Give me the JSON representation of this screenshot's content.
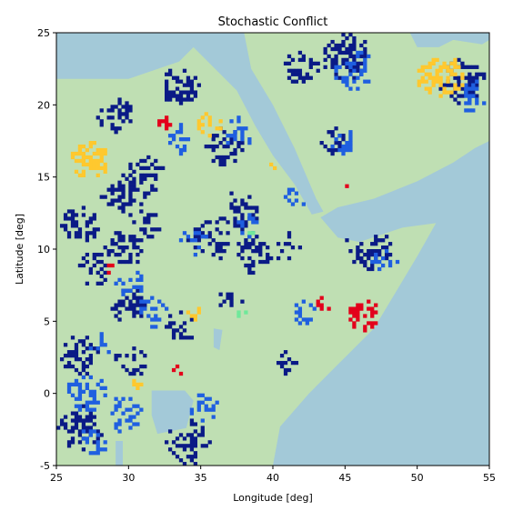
{
  "chart_data": {
    "type": "heatmap",
    "title": "Stochastic Conflict",
    "xlabel": "Longitude [deg]",
    "ylabel": "Latitude [deg]",
    "xlim": [
      25,
      55
    ],
    "ylim": [
      -5,
      25
    ],
    "xticks": [
      25,
      30,
      35,
      40,
      45,
      50,
      55
    ],
    "yticks": [
      -5,
      0,
      5,
      10,
      15,
      20,
      25
    ],
    "grid": false,
    "legend": "none",
    "colors": {
      "sea": "#a3c9d8",
      "land": "#bfdfb3",
      "conflict_dark": "#0a1a86",
      "conflict_blue": "#1f5fe0",
      "conflict_yellow": "#ffc82e",
      "conflict_red": "#e3001b",
      "conflict_green": "#6fe89a"
    },
    "sea_regions": [
      {
        "name": "Mediterranean / Sinai",
        "points": [
          [
            25,
            25
          ],
          [
            35.5,
            25
          ],
          [
            33.5,
            23.0
          ],
          [
            30,
            21.8
          ],
          [
            25,
            21.8
          ]
        ]
      },
      {
        "name": "Red Sea",
        "points": [
          [
            33.5,
            25
          ],
          [
            38,
            25
          ],
          [
            38.5,
            22.5
          ],
          [
            40,
            20
          ],
          [
            41.5,
            17
          ],
          [
            43,
            13.5
          ],
          [
            43.5,
            12.6
          ],
          [
            42.7,
            12.4
          ],
          [
            41.5,
            14.5
          ],
          [
            40,
            16.5
          ],
          [
            38.8,
            18.5
          ],
          [
            37.5,
            21
          ],
          [
            36,
            22.5
          ],
          [
            34.5,
            24
          ],
          [
            33.5,
            25
          ]
        ]
      },
      {
        "name": "Gulf of Aden / Arabian Sea",
        "points": [
          [
            43.3,
            12.2
          ],
          [
            44.5,
            12.9
          ],
          [
            47,
            13.5
          ],
          [
            50,
            14.7
          ],
          [
            52.5,
            16
          ],
          [
            54,
            17
          ],
          [
            55,
            17.5
          ],
          [
            55,
            -5
          ],
          [
            40,
            -5
          ],
          [
            40.5,
            -2.3
          ],
          [
            42.5,
            0
          ],
          [
            44.5,
            2
          ],
          [
            47,
            4.5
          ],
          [
            48.5,
            7
          ],
          [
            50,
            9.5
          ],
          [
            51.3,
            11.8
          ],
          [
            49,
            11.5
          ],
          [
            46,
            10.5
          ],
          [
            44.5,
            10.8
          ],
          [
            43.3,
            12.2
          ]
        ]
      },
      {
        "name": "Persian Gulf",
        "points": [
          [
            48,
            25
          ],
          [
            49.5,
            25
          ],
          [
            50,
            24
          ],
          [
            51.5,
            24
          ],
          [
            52.5,
            24.5
          ],
          [
            54.5,
            24.2
          ],
          [
            55,
            24.5
          ],
          [
            55,
            25
          ]
        ]
      },
      {
        "name": "Lake Victoria",
        "points": [
          [
            31.6,
            0.2
          ],
          [
            33.9,
            0.2
          ],
          [
            34.5,
            -0.5
          ],
          [
            34,
            -2.4
          ],
          [
            32,
            -2.8
          ],
          [
            31.6,
            -1.5
          ]
        ]
      },
      {
        "name": "Lake Turkana",
        "points": [
          [
            35.9,
            4.5
          ],
          [
            36.5,
            4.4
          ],
          [
            36.3,
            3
          ],
          [
            35.9,
            3.2
          ]
        ]
      },
      {
        "name": "Lake Tanganyika",
        "points": [
          [
            29.1,
            -3.3
          ],
          [
            29.6,
            -3.3
          ],
          [
            29.6,
            -5
          ],
          [
            29.1,
            -5
          ]
        ]
      }
    ],
    "conflict_clusters": [
      {
        "category": "dark",
        "center": [
          33.5,
          21.2
        ],
        "radius": 1.4,
        "density": 0.6
      },
      {
        "category": "dark",
        "center": [
          26.5,
          11.5
        ],
        "radius": 1.3,
        "density": 0.5
      },
      {
        "category": "dark",
        "center": [
          29,
          19
        ],
        "radius": 1.3,
        "density": 0.5
      },
      {
        "category": "dark",
        "center": [
          29.5,
          13.5
        ],
        "radius": 1.6,
        "density": 0.45
      },
      {
        "category": "dark",
        "center": [
          31,
          15
        ],
        "radius": 1.4,
        "density": 0.45
      },
      {
        "category": "dark",
        "center": [
          29.5,
          9.8
        ],
        "radius": 1.3,
        "density": 0.5
      },
      {
        "category": "dark",
        "center": [
          27.5,
          8.5
        ],
        "radius": 1.2,
        "density": 0.4
      },
      {
        "category": "dark",
        "center": [
          31,
          11.5
        ],
        "radius": 1.2,
        "density": 0.4
      },
      {
        "category": "dark",
        "center": [
          36.5,
          17
        ],
        "radius": 1.4,
        "density": 0.5
      },
      {
        "category": "dark",
        "center": [
          37.5,
          12.5
        ],
        "radius": 1.4,
        "density": 0.45
      },
      {
        "category": "dark",
        "center": [
          35.5,
          10.5
        ],
        "radius": 1.5,
        "density": 0.4
      },
      {
        "category": "dark",
        "center": [
          38.5,
          9.5
        ],
        "radius": 1.3,
        "density": 0.45
      },
      {
        "category": "dark",
        "center": [
          41,
          10
        ],
        "radius": 1.2,
        "density": 0.35
      },
      {
        "category": "dark",
        "center": [
          46.5,
          10
        ],
        "radius": 1.6,
        "density": 0.55
      },
      {
        "category": "dark",
        "center": [
          45,
          23.2
        ],
        "radius": 1.7,
        "density": 0.55
      },
      {
        "category": "dark",
        "center": [
          53,
          21.5
        ],
        "radius": 1.6,
        "density": 0.6
      },
      {
        "category": "dark",
        "center": [
          44,
          17.5
        ],
        "radius": 1.0,
        "density": 0.35
      },
      {
        "category": "dark",
        "center": [
          42,
          22.5
        ],
        "radius": 1.3,
        "density": 0.4
      },
      {
        "category": "dark",
        "center": [
          26.5,
          2.5
        ],
        "radius": 1.4,
        "density": 0.5
      },
      {
        "category": "dark",
        "center": [
          26.5,
          -2.5
        ],
        "radius": 1.6,
        "density": 0.5
      },
      {
        "category": "dark",
        "center": [
          34,
          -3.5
        ],
        "radius": 1.6,
        "density": 0.5
      },
      {
        "category": "dark",
        "center": [
          30,
          6
        ],
        "radius": 1.3,
        "density": 0.4
      },
      {
        "category": "dark",
        "center": [
          30,
          2
        ],
        "radius": 1.2,
        "density": 0.35
      },
      {
        "category": "dark",
        "center": [
          33.5,
          4.5
        ],
        "radius": 1.2,
        "density": 0.35
      },
      {
        "category": "dark",
        "center": [
          41,
          2
        ],
        "radius": 0.9,
        "density": 0.4
      },
      {
        "category": "dark",
        "center": [
          37,
          6.3
        ],
        "radius": 0.9,
        "density": 0.35
      },
      {
        "category": "blue",
        "center": [
          45.5,
          22.3
        ],
        "radius": 1.4,
        "density": 0.45
      },
      {
        "category": "blue",
        "center": [
          53.5,
          20.5
        ],
        "radius": 1.2,
        "density": 0.45
      },
      {
        "category": "blue",
        "center": [
          44.8,
          17.3
        ],
        "radius": 0.9,
        "density": 0.5
      },
      {
        "category": "blue",
        "center": [
          37.5,
          18
        ],
        "radius": 1.1,
        "density": 0.45
      },
      {
        "category": "blue",
        "center": [
          33.5,
          17.5
        ],
        "radius": 1.0,
        "density": 0.35
      },
      {
        "category": "blue",
        "center": [
          41.5,
          13.5
        ],
        "radius": 0.9,
        "density": 0.4
      },
      {
        "category": "blue",
        "center": [
          34.5,
          10.5
        ],
        "radius": 1.0,
        "density": 0.4
      },
      {
        "category": "blue",
        "center": [
          38,
          11.5
        ],
        "radius": 0.9,
        "density": 0.35
      },
      {
        "category": "blue",
        "center": [
          30,
          7.5
        ],
        "radius": 1.0,
        "density": 0.4
      },
      {
        "category": "blue",
        "center": [
          31.5,
          5.5
        ],
        "radius": 1.1,
        "density": 0.4
      },
      {
        "category": "blue",
        "center": [
          28,
          3.5
        ],
        "radius": 1.0,
        "density": 0.4
      },
      {
        "category": "blue",
        "center": [
          27,
          0
        ],
        "radius": 1.4,
        "density": 0.45
      },
      {
        "category": "blue",
        "center": [
          29.5,
          -1.5
        ],
        "radius": 1.3,
        "density": 0.45
      },
      {
        "category": "blue",
        "center": [
          27.5,
          -3.5
        ],
        "radius": 1.1,
        "density": 0.4
      },
      {
        "category": "blue",
        "center": [
          35,
          -1
        ],
        "radius": 1.1,
        "density": 0.35
      },
      {
        "category": "blue",
        "center": [
          42,
          5.5
        ],
        "radius": 0.9,
        "density": 0.45
      },
      {
        "category": "blue",
        "center": [
          47.5,
          9
        ],
        "radius": 1.0,
        "density": 0.35
      },
      {
        "category": "yellow",
        "center": [
          27.2,
          16
        ],
        "radius": 1.3,
        "density": 0.6
      },
      {
        "category": "yellow",
        "center": [
          51.5,
          21.8
        ],
        "radius": 1.6,
        "density": 0.6
      },
      {
        "category": "yellow",
        "center": [
          35.5,
          18.5
        ],
        "radius": 0.9,
        "density": 0.55
      },
      {
        "category": "yellow",
        "center": [
          34.3,
          5.5
        ],
        "radius": 0.6,
        "density": 0.55
      },
      {
        "category": "yellow",
        "center": [
          40,
          15.8
        ],
        "radius": 0.4,
        "density": 0.5
      },
      {
        "category": "yellow",
        "center": [
          30.5,
          0.5
        ],
        "radius": 0.5,
        "density": 0.5
      },
      {
        "category": "red",
        "center": [
          46.2,
          5.3
        ],
        "radius": 1.2,
        "density": 0.6
      },
      {
        "category": "red",
        "center": [
          32.3,
          18.6
        ],
        "radius": 0.5,
        "density": 0.6
      },
      {
        "category": "red",
        "center": [
          43.5,
          6.1
        ],
        "radius": 0.6,
        "density": 0.55
      },
      {
        "category": "red",
        "center": [
          28.7,
          8.5
        ],
        "radius": 0.5,
        "density": 0.5
      },
      {
        "category": "red",
        "center": [
          33.2,
          1.4
        ],
        "radius": 0.4,
        "density": 0.5
      },
      {
        "category": "red",
        "center": [
          45.2,
          14.2
        ],
        "radius": 0.3,
        "density": 0.5
      },
      {
        "category": "green",
        "center": [
          48.6,
          6.5
        ],
        "radius": 0.5,
        "density": 0.5
      },
      {
        "category": "green",
        "center": [
          37.8,
          5.5
        ],
        "radius": 0.4,
        "density": 0.5
      },
      {
        "category": "green",
        "center": [
          38.5,
          11
        ],
        "radius": 0.3,
        "density": 0.4
      }
    ]
  }
}
